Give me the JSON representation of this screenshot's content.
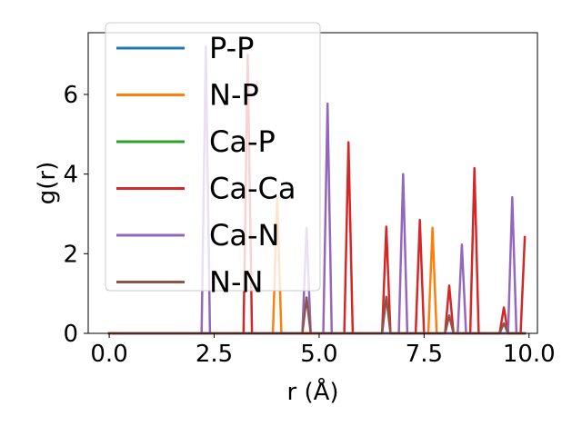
{
  "chart_data": {
    "type": "line",
    "xlabel": "r (Å)",
    "ylabel": "g(r)",
    "xlim": [
      -0.5,
      10.2
    ],
    "ylim": [
      0,
      7.55
    ],
    "xticks": [
      0.0,
      2.5,
      5.0,
      7.5,
      10.0
    ],
    "xtick_labels": [
      "0.0",
      "2.5",
      "5.0",
      "7.5",
      "10.0"
    ],
    "yticks": [
      0,
      2,
      4,
      6
    ],
    "ytick_labels": [
      "0",
      "2",
      "4",
      "6"
    ],
    "grid": false,
    "legend_position": "top-left",
    "series": [
      {
        "name": "P-P",
        "color": "#1f77b4",
        "x": [
          0.0,
          9.9
        ],
        "y": [
          0.0,
          0.0
        ]
      },
      {
        "name": "N-P",
        "color": "#ff7f0e",
        "x": [
          0.0,
          3.9,
          4.0,
          4.1,
          7.6,
          7.7,
          7.8,
          9.9
        ],
        "y": [
          0.0,
          0.0,
          3.4,
          0.0,
          0.0,
          2.65,
          0.0,
          0.0
        ]
      },
      {
        "name": "Ca-P",
        "color": "#2ca02c",
        "x": [
          0.0,
          9.9
        ],
        "y": [
          0.0,
          0.0
        ]
      },
      {
        "name": "Ca-Ca",
        "color": "#d62728",
        "x": [
          0.0,
          3.2,
          3.3,
          3.4,
          5.6,
          5.7,
          5.8,
          6.5,
          6.6,
          6.7,
          7.3,
          7.4,
          7.5,
          8.0,
          8.1,
          8.2,
          8.6,
          8.7,
          8.8,
          9.3,
          9.4,
          9.5,
          9.8,
          9.9
        ],
        "y": [
          0.0,
          0.0,
          7.0,
          0.0,
          0.0,
          4.8,
          0.0,
          0.0,
          2.68,
          0.0,
          0.0,
          2.85,
          0.0,
          0.0,
          1.2,
          0.0,
          0.0,
          4.15,
          0.0,
          0.0,
          0.65,
          0.0,
          0.0,
          2.42
        ]
      },
      {
        "name": "Ca-N",
        "color": "#9467bd",
        "x": [
          0.0,
          2.2,
          2.3,
          2.4,
          4.6,
          4.7,
          4.8,
          5.1,
          5.2,
          5.3,
          6.9,
          7.0,
          7.1,
          8.3,
          8.4,
          8.5,
          9.5,
          9.6,
          9.7,
          9.9
        ],
        "y": [
          0.0,
          0.0,
          7.2,
          0.0,
          0.0,
          2.65,
          0.0,
          0.0,
          5.77,
          0.0,
          0.0,
          4.0,
          0.0,
          0.0,
          2.23,
          0.0,
          0.0,
          3.42,
          0.0,
          0.0
        ]
      },
      {
        "name": "N-N",
        "color": "#8c564b",
        "x": [
          0.0,
          4.6,
          4.7,
          4.8,
          6.5,
          6.6,
          6.7,
          8.0,
          8.1,
          8.2,
          9.3,
          9.4,
          9.5,
          9.9
        ],
        "y": [
          0.0,
          0.0,
          0.9,
          0.0,
          0.0,
          0.92,
          0.0,
          0.0,
          0.45,
          0.0,
          0.0,
          0.25,
          0.0,
          0.0
        ]
      }
    ]
  }
}
